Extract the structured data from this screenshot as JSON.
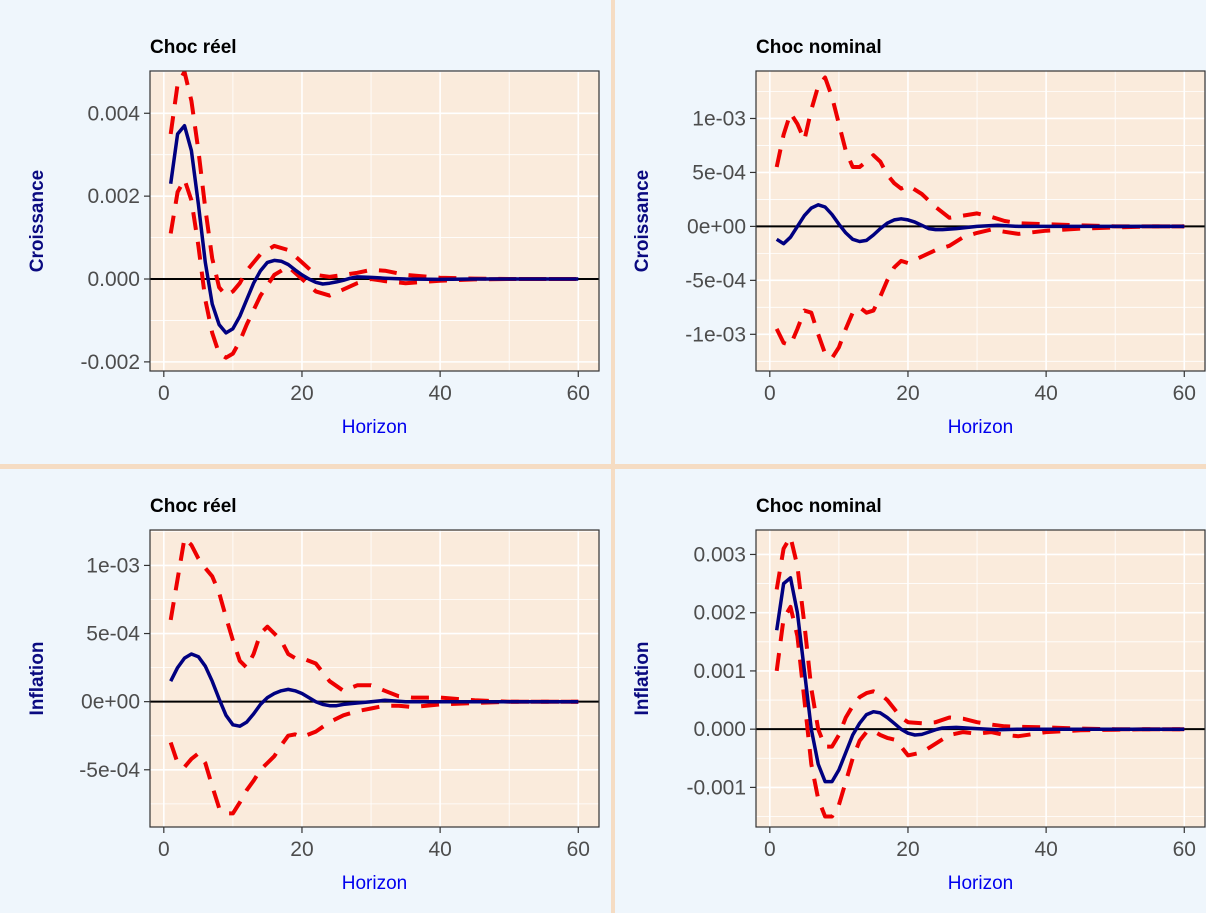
{
  "colors": {
    "panel_background": "#eff6fc",
    "plot_background": "#faebdc",
    "grid": "#ffffff",
    "irf_line": "#000080",
    "band_line": "#ee0000",
    "zero_line": "#000000",
    "divider": "#f5dcc3"
  },
  "chart_data": [
    {
      "type": "line",
      "title": "Choc réel",
      "xlabel": "Horizon",
      "ylabel": "Croissance",
      "xlim": [
        -2,
        63
      ],
      "ylim": [
        -0.00222,
        0.00502
      ],
      "x_ticks": [
        0,
        20,
        40,
        60
      ],
      "x_tick_labels": [
        "0",
        "20",
        "40",
        "60"
      ],
      "y_ticks": [
        -0.002,
        0.0,
        0.002,
        0.004
      ],
      "y_tick_labels": [
        "-0.002",
        "0.000",
        "0.002",
        "0.004"
      ],
      "grid": true,
      "zero_line": 0,
      "series": [
        {
          "style": "solid",
          "x": [
            1,
            2,
            3,
            4,
            5,
            6,
            7,
            8,
            9,
            10,
            11,
            12,
            13,
            14,
            15,
            16,
            17,
            18,
            19,
            20,
            21,
            22,
            23,
            24,
            25,
            26,
            27,
            28,
            30,
            32,
            35,
            40,
            45,
            50,
            55,
            60
          ],
          "y": [
            0.0023,
            0.0035,
            0.0037,
            0.0031,
            0.0018,
            0.0004,
            -0.0006,
            -0.0011,
            -0.0013,
            -0.0012,
            -0.0009,
            -0.0005,
            -0.0001,
            0.0002,
            0.0004,
            0.00045,
            0.00043,
            0.00035,
            0.00022,
            0.0001,
            0.0,
            -8e-05,
            -0.00012,
            -0.0001,
            -7e-05,
            -3e-05,
            2e-05,
            5e-05,
            4e-05,
            2e-05,
            0.0,
            -1e-05,
            0.0,
            0.0,
            0.0,
            0.0
          ]
        },
        {
          "style": "dashed",
          "x": [
            1,
            2,
            3,
            4,
            5,
            6,
            7,
            8,
            9,
            10,
            11,
            12,
            14,
            16,
            18,
            20,
            22,
            24,
            26,
            28,
            30,
            32,
            35,
            40,
            45,
            50,
            55,
            60
          ],
          "y": [
            0.0035,
            0.0047,
            0.005,
            0.0043,
            0.0031,
            0.0017,
            0.0005,
            -0.0002,
            -0.0004,
            -0.0003,
            -0.0001,
            0.0002,
            0.0006,
            0.0008,
            0.0007,
            0.0004,
            0.0001,
            5e-05,
            0.0001,
            0.00015,
            0.00022,
            0.0002,
            0.0001,
            3e-05,
            1e-05,
            0.0,
            0.0,
            0.0
          ]
        },
        {
          "style": "dashed",
          "x": [
            1,
            2,
            3,
            4,
            5,
            6,
            7,
            8,
            9,
            10,
            11,
            12,
            14,
            16,
            18,
            20,
            22,
            24,
            26,
            28,
            30,
            32,
            35,
            40,
            45,
            50,
            55,
            60
          ],
          "y": [
            0.0011,
            0.0021,
            0.0024,
            0.0019,
            0.0008,
            -0.0005,
            -0.0013,
            -0.0018,
            -0.0019,
            -0.0018,
            -0.0015,
            -0.0011,
            -0.0004,
            0.0001,
            0.0003,
            0.0,
            -0.0003,
            -0.0004,
            -0.00025,
            -0.0001,
            0.0,
            -5e-05,
            -0.0001,
            -4e-05,
            -1e-05,
            0.0,
            0.0,
            0.0
          ]
        }
      ]
    },
    {
      "type": "line",
      "title": "Choc nominal",
      "xlabel": "Horizon",
      "ylabel": "Croissance",
      "xlim": [
        -2,
        63
      ],
      "ylim": [
        -0.00134,
        0.00144
      ],
      "x_ticks": [
        0,
        20,
        40,
        60
      ],
      "x_tick_labels": [
        "0",
        "20",
        "40",
        "60"
      ],
      "y_ticks": [
        -0.001,
        -0.0005,
        0.0,
        0.0005,
        0.001
      ],
      "y_tick_labels": [
        "-1e-03",
        "-5e-04",
        "0e+00",
        "5e-04",
        "1e-03"
      ],
      "grid": true,
      "zero_line": 0,
      "series": [
        {
          "style": "solid",
          "x": [
            1,
            2,
            3,
            4,
            5,
            6,
            7,
            8,
            9,
            10,
            11,
            12,
            13,
            14,
            15,
            16,
            17,
            18,
            19,
            20,
            21,
            22,
            23,
            24,
            25,
            27,
            30,
            33,
            36,
            40,
            45,
            50,
            55,
            60
          ],
          "y": [
            -0.00012,
            -0.00016,
            -0.0001,
            0.0,
            0.0001,
            0.00017,
            0.0002,
            0.00018,
            0.00011,
            2e-05,
            -6e-05,
            -0.00012,
            -0.00014,
            -0.00013,
            -8e-05,
            -2e-05,
            3e-05,
            6e-05,
            7e-05,
            6e-05,
            4e-05,
            1e-05,
            -2e-05,
            -3e-05,
            -3e-05,
            -2e-05,
            0.0,
            1e-05,
            0.0,
            0.0,
            0.0,
            0.0,
            0.0,
            0.0
          ]
        },
        {
          "style": "dashed",
          "x": [
            1,
            2,
            3,
            4,
            5,
            6,
            7,
            8,
            9,
            10,
            11,
            12,
            13,
            14,
            15,
            16,
            17,
            18,
            19,
            20,
            22,
            24,
            26,
            28,
            30,
            32,
            34,
            36,
            40,
            45,
            50,
            55,
            60
          ],
          "y": [
            0.00055,
            0.00085,
            0.00105,
            0.00095,
            0.0008,
            0.00108,
            0.0013,
            0.00138,
            0.0012,
            0.00095,
            0.0007,
            0.00055,
            0.00055,
            0.0006,
            0.00066,
            0.0006,
            0.00048,
            0.0004,
            0.00035,
            0.00038,
            0.0003,
            0.00018,
            8e-05,
            0.0001,
            0.00012,
            9e-05,
            5e-05,
            3e-05,
            2e-05,
            1e-05,
            0.0,
            0.0,
            0.0
          ]
        },
        {
          "style": "dashed",
          "x": [
            1,
            2,
            3,
            4,
            5,
            6,
            7,
            8,
            9,
            10,
            11,
            12,
            13,
            14,
            15,
            16,
            17,
            18,
            19,
            20,
            22,
            24,
            26,
            28,
            30,
            32,
            34,
            36,
            40,
            45,
            50,
            55,
            60
          ],
          "y": [
            -0.00095,
            -0.00108,
            -0.0011,
            -0.00095,
            -0.00078,
            -0.0008,
            -0.001,
            -0.00118,
            -0.00122,
            -0.00112,
            -0.00095,
            -0.0008,
            -0.00075,
            -0.0008,
            -0.00078,
            -0.00065,
            -0.0005,
            -0.00038,
            -0.00032,
            -0.00034,
            -0.00028,
            -0.00022,
            -0.00018,
            -0.0001,
            -6e-05,
            -3e-05,
            -5e-05,
            -7e-05,
            -4e-05,
            -2e-05,
            -1e-05,
            0.0,
            0.0
          ]
        }
      ]
    },
    {
      "type": "line",
      "title": "Choc réel",
      "xlabel": "Horizon",
      "ylabel": "Inflation",
      "xlim": [
        -2,
        63
      ],
      "ylim": [
        -0.00092,
        0.00126
      ],
      "x_ticks": [
        0,
        20,
        40,
        60
      ],
      "x_tick_labels": [
        "0",
        "20",
        "40",
        "60"
      ],
      "y_ticks": [
        -0.0005,
        0.0,
        0.0005,
        0.001
      ],
      "y_tick_labels": [
        "-5e-04",
        "0e+00",
        "5e-04",
        "1e-03"
      ],
      "grid": true,
      "zero_line": 0,
      "series": [
        {
          "style": "solid",
          "x": [
            1,
            2,
            3,
            4,
            5,
            6,
            7,
            8,
            9,
            10,
            11,
            12,
            13,
            14,
            15,
            16,
            17,
            18,
            19,
            20,
            21,
            22,
            23,
            24,
            25,
            26,
            28,
            30,
            32,
            35,
            40,
            45,
            50,
            55,
            60
          ],
          "y": [
            0.00015,
            0.00025,
            0.00032,
            0.00035,
            0.00033,
            0.00026,
            0.00015,
            2e-05,
            -0.0001,
            -0.00017,
            -0.00018,
            -0.00015,
            -9e-05,
            -2e-05,
            3e-05,
            6e-05,
            8e-05,
            9e-05,
            8e-05,
            6e-05,
            3e-05,
            0.0,
            -2e-05,
            -3e-05,
            -3e-05,
            -2e-05,
            -1e-05,
            0.0,
            1e-05,
            0.0,
            0.0,
            0.0,
            0.0,
            0.0,
            0.0
          ]
        },
        {
          "style": "dashed",
          "x": [
            1,
            2,
            3,
            4,
            5,
            6,
            7,
            8,
            9,
            10,
            11,
            12,
            13,
            14,
            15,
            16,
            17,
            18,
            19,
            20,
            22,
            24,
            26,
            28,
            30,
            32,
            34,
            36,
            40,
            45,
            50,
            55,
            60
          ],
          "y": [
            0.0006,
            0.0009,
            0.0012,
            0.00115,
            0.00105,
            0.00098,
            0.00092,
            0.0008,
            0.00062,
            0.00045,
            0.0003,
            0.00025,
            0.00035,
            0.0005,
            0.00055,
            0.0005,
            0.00045,
            0.00035,
            0.00032,
            0.00032,
            0.00028,
            0.00015,
            8e-05,
            0.00012,
            0.00012,
            8e-05,
            4e-05,
            3e-05,
            3e-05,
            1e-05,
            0.0,
            0.0,
            0.0
          ]
        },
        {
          "style": "dashed",
          "x": [
            1,
            2,
            3,
            4,
            5,
            6,
            7,
            8,
            9,
            10,
            11,
            12,
            13,
            14,
            15,
            16,
            17,
            18,
            19,
            20,
            22,
            24,
            26,
            28,
            30,
            32,
            34,
            36,
            40,
            45,
            50,
            55,
            60
          ],
          "y": [
            -0.0003,
            -0.00045,
            -0.00048,
            -0.00042,
            -0.00038,
            -0.00045,
            -0.00062,
            -0.00078,
            -0.00082,
            -0.00082,
            -0.00074,
            -0.00065,
            -0.00058,
            -0.0005,
            -0.00045,
            -0.0004,
            -0.00032,
            -0.00025,
            -0.00024,
            -0.00026,
            -0.00022,
            -0.00015,
            -0.0001,
            -7e-05,
            -5e-05,
            -3e-05,
            -3e-05,
            -4e-05,
            -2e-05,
            -1e-05,
            0.0,
            0.0,
            0.0
          ]
        }
      ]
    },
    {
      "type": "line",
      "title": "Choc nominal",
      "xlabel": "Horizon",
      "ylabel": "Inflation",
      "xlim": [
        -2,
        63
      ],
      "ylim": [
        -0.00168,
        0.00342
      ],
      "x_ticks": [
        0,
        20,
        40,
        60
      ],
      "x_tick_labels": [
        "0",
        "20",
        "40",
        "60"
      ],
      "y_ticks": [
        -0.001,
        0.0,
        0.001,
        0.002,
        0.003
      ],
      "y_tick_labels": [
        "-0.001",
        "0.000",
        "0.001",
        "0.002",
        "0.003"
      ],
      "grid": true,
      "zero_line": 0,
      "series": [
        {
          "style": "solid",
          "x": [
            1,
            2,
            3,
            4,
            5,
            6,
            7,
            8,
            9,
            10,
            11,
            12,
            13,
            14,
            15,
            16,
            17,
            18,
            19,
            20,
            21,
            22,
            23,
            24,
            25,
            27,
            30,
            33,
            36,
            40,
            45,
            50,
            55,
            60
          ],
          "y": [
            0.0017,
            0.0025,
            0.0026,
            0.002,
            0.001,
            0.0,
            -0.0006,
            -0.0009,
            -0.0009,
            -0.0007,
            -0.0004,
            -0.0001,
            0.0001,
            0.00025,
            0.0003,
            0.00028,
            0.0002,
            0.0001,
            0.0,
            -7e-05,
            -0.0001,
            -9e-05,
            -5e-05,
            -1e-05,
            2e-05,
            3e-05,
            1e-05,
            -1e-05,
            0.0,
            0.0,
            0.0,
            0.0,
            0.0,
            0.0
          ]
        },
        {
          "style": "dashed",
          "x": [
            1,
            2,
            3,
            4,
            5,
            6,
            7,
            8,
            9,
            10,
            11,
            12,
            13,
            14,
            15,
            16,
            17,
            18,
            19,
            20,
            22,
            24,
            26,
            28,
            30,
            32,
            34,
            36,
            40,
            45,
            50,
            55,
            60
          ],
          "y": [
            0.0024,
            0.0031,
            0.0033,
            0.0028,
            0.0018,
            0.0007,
            0.0,
            -0.0003,
            -0.0003,
            -0.0001,
            0.0002,
            0.0004,
            0.00055,
            0.00062,
            0.00065,
            0.0006,
            0.0005,
            0.00035,
            0.0002,
            0.00012,
            0.0001,
            0.00012,
            0.0002,
            0.00018,
            0.00012,
            8e-05,
            5e-05,
            4e-05,
            3e-05,
            1e-05,
            0.0,
            0.0,
            0.0
          ]
        },
        {
          "style": "dashed",
          "x": [
            1,
            2,
            3,
            4,
            5,
            6,
            7,
            8,
            9,
            10,
            11,
            12,
            13,
            14,
            15,
            16,
            17,
            18,
            19,
            20,
            22,
            24,
            26,
            28,
            30,
            32,
            34,
            36,
            40,
            45,
            50,
            55,
            60
          ],
          "y": [
            0.001,
            0.0019,
            0.0021,
            0.0016,
            0.0005,
            -0.0006,
            -0.0012,
            -0.0015,
            -0.0015,
            -0.0013,
            -0.0009,
            -0.0005,
            -0.0002,
            -5e-05,
            -3e-05,
            -0.0001,
            -0.00015,
            -0.00018,
            -0.0003,
            -0.00045,
            -0.0004,
            -0.00025,
            -0.0001,
            -5e-05,
            -8e-05,
            -5e-05,
            -0.0001,
            -0.00012,
            -5e-05,
            -2e-05,
            -1e-05,
            0.0,
            0.0
          ]
        }
      ]
    }
  ]
}
